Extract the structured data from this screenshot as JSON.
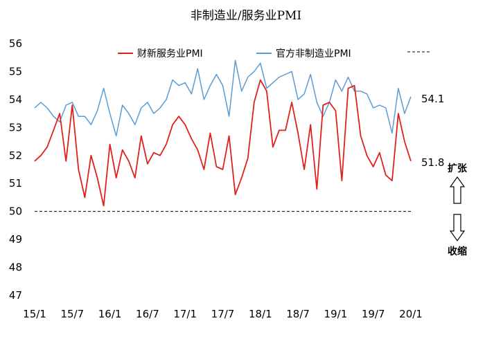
{
  "chart_data": {
    "type": "line",
    "title": "非制造业/服务业PMI",
    "xlabel": "",
    "ylabel": "",
    "ylim": [
      47,
      56
    ],
    "yticks": [
      47,
      48,
      49,
      50,
      51,
      52,
      53,
      54,
      55,
      56
    ],
    "x": [
      1,
      2,
      3,
      4,
      5,
      6,
      7,
      8,
      9,
      10,
      11,
      12,
      13,
      14,
      15,
      16,
      17,
      18,
      19,
      20,
      21,
      22,
      23,
      24,
      25,
      26,
      27,
      28,
      29,
      30,
      31,
      32,
      33,
      34,
      35,
      36,
      37,
      38,
      39,
      40,
      41,
      42,
      43,
      44,
      45,
      46,
      47,
      48,
      49,
      50,
      51,
      52,
      53,
      54,
      55,
      56,
      57,
      58,
      59,
      60,
      61
    ],
    "xticks": [
      {
        "x": 1,
        "label": "15/1"
      },
      {
        "x": 7,
        "label": "15/7"
      },
      {
        "x": 13,
        "label": "16/1"
      },
      {
        "x": 19,
        "label": "16/7"
      },
      {
        "x": 25,
        "label": "17/1"
      },
      {
        "x": 31,
        "label": "17/7"
      },
      {
        "x": 37,
        "label": "18/1"
      },
      {
        "x": 43,
        "label": "18/7"
      },
      {
        "x": 49,
        "label": "19/1"
      },
      {
        "x": 55,
        "label": "19/7"
      },
      {
        "x": 61,
        "label": "20/1"
      }
    ],
    "series": [
      {
        "name": "财新服务业PMI",
        "color": "#e0201b",
        "values": [
          51.8,
          52.0,
          52.3,
          52.9,
          53.5,
          51.8,
          53.8,
          51.5,
          50.5,
          52.0,
          51.2,
          50.2,
          52.4,
          51.2,
          52.2,
          51.8,
          51.2,
          52.7,
          51.7,
          52.1,
          52.0,
          52.4,
          53.1,
          53.4,
          53.1,
          52.6,
          52.2,
          51.5,
          52.8,
          51.6,
          51.5,
          52.7,
          50.6,
          51.2,
          51.9,
          53.9,
          54.7,
          54.3,
          52.3,
          52.9,
          52.9,
          53.9,
          52.8,
          51.5,
          53.1,
          50.8,
          53.8,
          53.9,
          53.6,
          51.1,
          54.4,
          54.5,
          52.7,
          52.0,
          51.6,
          52.1,
          51.3,
          51.1,
          53.5,
          52.5,
          51.8
        ]
      },
      {
        "name": "官方非制造业PMI",
        "color": "#5b9bd5",
        "values": [
          53.7,
          53.9,
          53.7,
          53.4,
          53.2,
          53.8,
          53.9,
          53.4,
          53.4,
          53.1,
          53.6,
          54.4,
          53.5,
          52.7,
          53.8,
          53.5,
          53.1,
          53.7,
          53.9,
          53.5,
          53.7,
          54.0,
          54.7,
          54.5,
          54.6,
          54.2,
          55.1,
          54.0,
          54.5,
          54.9,
          54.5,
          53.4,
          55.4,
          54.3,
          54.8,
          55.0,
          55.3,
          54.4,
          54.6,
          54.8,
          54.9,
          55.0,
          54.0,
          54.2,
          54.9,
          53.9,
          53.4,
          53.9,
          54.7,
          54.3,
          54.8,
          54.3,
          54.3,
          54.2,
          53.7,
          53.8,
          53.7,
          52.8,
          54.4,
          53.5,
          54.1
        ]
      }
    ],
    "reference_line": {
      "value": 50,
      "style": "dashed"
    },
    "legend_position": "top",
    "end_labels": [
      "51.8",
      "54.1"
    ],
    "annotations": {
      "up": "扩张",
      "down": "收缩"
    }
  }
}
